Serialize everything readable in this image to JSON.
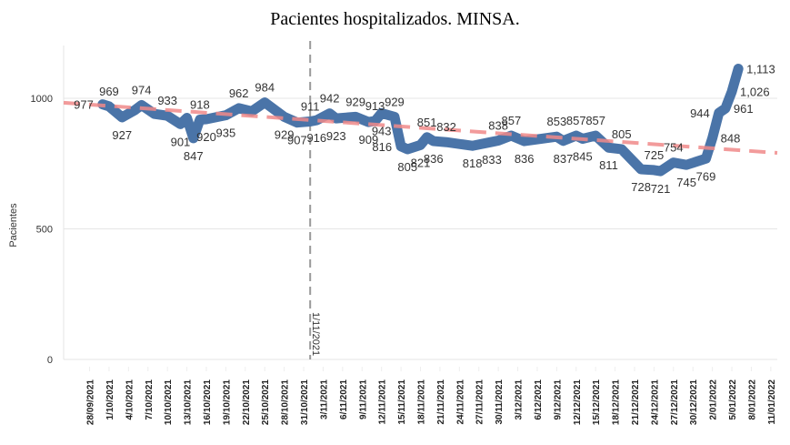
{
  "chart_data": {
    "type": "line",
    "title": "Pacientes hospitalizados. MINSA.",
    "xlabel": "",
    "ylabel": "Pacientes",
    "ylim": [
      0,
      1200
    ],
    "yticks": [
      0,
      500,
      1000
    ],
    "xlim": [
      "24/09/2021",
      "12/01/2022"
    ],
    "grid": true,
    "series_color": "#4a74a8",
    "trend_color": "#f08a8a",
    "marker_line_color": "#999999",
    "xticks": [
      "28/09/2021",
      "1/10/2021",
      "4/10/2021",
      "7/10/2021",
      "10/10/2021",
      "13/10/2021",
      "16/10/2021",
      "19/10/2021",
      "22/10/2021",
      "25/10/2021",
      "28/10/2021",
      "31/10/2021",
      "3/11/2021",
      "6/11/2021",
      "9/11/2021",
      "12/11/2021",
      "15/11/2021",
      "18/11/2021",
      "21/11/2021",
      "24/11/2021",
      "27/11/2021",
      "30/11/2021",
      "3/12/2021",
      "6/12/2021",
      "9/12/2021",
      "12/12/2021",
      "15/12/2021",
      "18/12/2021",
      "21/12/2021",
      "24/12/2021",
      "27/12/2021",
      "30/12/2021",
      "2/01/2022",
      "5/01/2022",
      "8/01/2022",
      "11/01/2022"
    ],
    "vertical_marker": {
      "date": "1/11/2021",
      "label": "1/11/2021"
    },
    "trend": {
      "start": [
        "24/09/2021",
        983
      ],
      "end": [
        "12/01/2022",
        791
      ]
    },
    "series": [
      {
        "points": [
          [
            "30/09/2021",
            977,
            "left"
          ],
          [
            "1/10/2021",
            969,
            "above"
          ],
          [
            "3/10/2021",
            927,
            "below"
          ],
          [
            "5/10/2021",
            955,
            ""
          ],
          [
            "6/10/2021",
            974,
            "above"
          ],
          [
            "8/10/2021",
            940,
            ""
          ],
          [
            "10/10/2021",
            933,
            "above"
          ],
          [
            "12/10/2021",
            901,
            "below"
          ],
          [
            "13/10/2021",
            925,
            ""
          ],
          [
            "14/10/2021",
            847,
            "below"
          ],
          [
            "15/10/2021",
            918,
            "above"
          ],
          [
            "16/10/2021",
            920,
            "below"
          ],
          [
            "19/10/2021",
            935,
            "below"
          ],
          [
            "21/10/2021",
            962,
            "above"
          ],
          [
            "23/10/2021",
            950,
            ""
          ],
          [
            "25/10/2021",
            984,
            "above"
          ],
          [
            "28/10/2021",
            929,
            "below"
          ],
          [
            "30/10/2021",
            907,
            "below"
          ],
          [
            "1/11/2021",
            911,
            "above"
          ],
          [
            "2/11/2021",
            916,
            "below"
          ],
          [
            "4/11/2021",
            942,
            "above"
          ],
          [
            "5/11/2021",
            923,
            "below"
          ],
          [
            "8/11/2021",
            929,
            "above"
          ],
          [
            "10/11/2021",
            909,
            "below"
          ],
          [
            "11/11/2021",
            913,
            "above"
          ],
          [
            "12/11/2021",
            943,
            "below"
          ],
          [
            "14/11/2021",
            929,
            "above"
          ],
          [
            "15/11/2021",
            816,
            "left"
          ],
          [
            "16/11/2021",
            805,
            "below"
          ],
          [
            "18/11/2021",
            821,
            "below"
          ],
          [
            "19/11/2021",
            851,
            "above"
          ],
          [
            "20/11/2021",
            836,
            "below"
          ],
          [
            "22/11/2021",
            832,
            "above"
          ],
          [
            "26/11/2021",
            818,
            "below"
          ],
          [
            "29/11/2021",
            833,
            "below"
          ],
          [
            "30/11/2021",
            838,
            "above"
          ],
          [
            "2/12/2021",
            857,
            "above"
          ],
          [
            "4/12/2021",
            836,
            "below"
          ],
          [
            "9/12/2021",
            853,
            "above"
          ],
          [
            "10/12/2021",
            837,
            "below"
          ],
          [
            "12/12/2021",
            857,
            "above"
          ],
          [
            "13/12/2021",
            845,
            "below"
          ],
          [
            "15/12/2021",
            857,
            "above"
          ],
          [
            "17/12/2021",
            811,
            "below"
          ],
          [
            "19/12/2021",
            805,
            "above"
          ],
          [
            "22/12/2021",
            728,
            "below"
          ],
          [
            "24/12/2021",
            725,
            "above"
          ],
          [
            "25/12/2021",
            721,
            "below"
          ],
          [
            "27/12/2021",
            754,
            "above"
          ],
          [
            "29/12/2021",
            745,
            "below"
          ],
          [
            "1/01/2022",
            769,
            "below"
          ],
          [
            "2/01/2022",
            848,
            "right"
          ],
          [
            "3/01/2022",
            944,
            "left"
          ],
          [
            "4/01/2022",
            961,
            "right"
          ],
          [
            "5/01/2022",
            1026,
            "right"
          ],
          [
            "6/01/2022",
            1113,
            "right"
          ]
        ]
      }
    ]
  }
}
